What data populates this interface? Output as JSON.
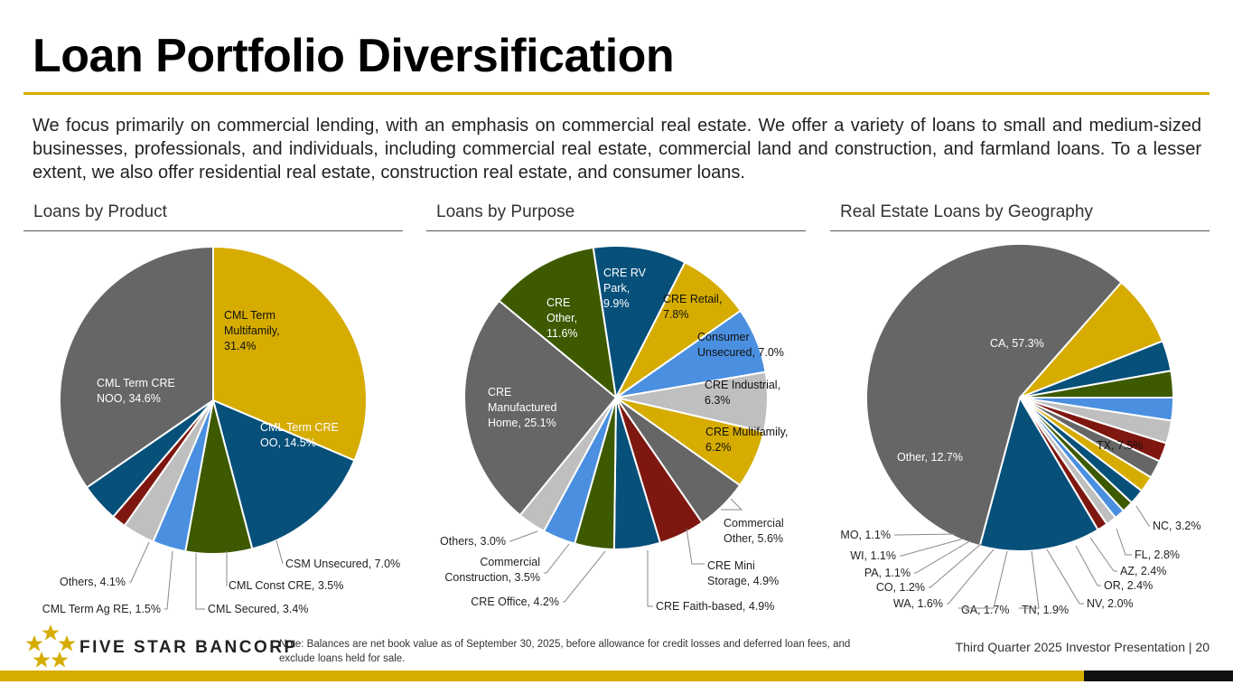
{
  "title": "Loan Portfolio Diversification",
  "intro": "We focus primarily on commercial lending, with an emphasis on commercial real estate. We offer a variety of loans to small and medium-sized businesses, professionals, and individuals, including commercial real estate, commercial land and construction, and farmland loans. To a lesser extent, we also offer residential real estate, construction real estate, and consumer loans.",
  "colors": {
    "gold": "#d6ac00",
    "navy": "#06507a",
    "gray": "#666666",
    "green": "#3d5a00",
    "lightgray": "#bfbfbf",
    "blue": "#4a8fe0",
    "maroon": "#7e1710"
  },
  "chart_data": [
    {
      "type": "pie",
      "title": "Loans by Product",
      "start_angle": 0,
      "slices": [
        {
          "label": "CML Term Multifamily, 31.4%",
          "name": "CML Term Multifamily",
          "value": 31.4,
          "color": "#d6ac00"
        },
        {
          "label": "CML Term CRE OO, 14.5%",
          "name": "CML Term CRE OO",
          "value": 14.5,
          "color": "#06507a"
        },
        {
          "label": "CSM Unsecured, 7.0%",
          "name": "CSM Unsecured",
          "value": 7.0,
          "color": "#3d5a00"
        },
        {
          "label": "CML Const CRE, 3.5%",
          "name": "CML Const CRE",
          "value": 3.5,
          "color": "#4a8fe0"
        },
        {
          "label": "CML Secured, 3.4%",
          "name": "CML Secured",
          "value": 3.4,
          "color": "#bfbfbf"
        },
        {
          "label": "CML Term Ag RE, 1.5%",
          "name": "CML Term Ag RE",
          "value": 1.5,
          "color": "#7e1710"
        },
        {
          "label": "Others, 4.1%",
          "name": "Others",
          "value": 4.1,
          "color": "#06507a"
        },
        {
          "label": "CML Term CRE NOO, 34.6%",
          "name": "CML Term CRE NOO",
          "value": 34.6,
          "color": "#666666"
        }
      ]
    },
    {
      "type": "pie",
      "title": "Loans by Purpose",
      "start_angle": 0,
      "slices": [
        {
          "label": "CRE Retail, 7.8%",
          "name": "CRE Retail",
          "value": 7.8,
          "color": "#d6ac00"
        },
        {
          "label": "Consumer Unsecured, 7.0%",
          "name": "Consumer Unsecured",
          "value": 7.0,
          "color": "#4a8fe0"
        },
        {
          "label": "CRE Industrial, 6.3%",
          "name": "CRE Industrial",
          "value": 6.3,
          "color": "#bfbfbf"
        },
        {
          "label": "CRE Multifamily, 6.2%",
          "name": "CRE Multifamily",
          "value": 6.2,
          "color": "#d6ac00"
        },
        {
          "label": "Commercial Other, 5.6%",
          "name": "Commercial Other",
          "value": 5.6,
          "color": "#666666"
        },
        {
          "label": "CRE Mini Storage, 4.9%",
          "name": "CRE Mini Storage",
          "value": 4.9,
          "color": "#7e1710"
        },
        {
          "label": "CRE Faith-based, 4.9%",
          "name": "CRE Faith-based",
          "value": 4.9,
          "color": "#06507a"
        },
        {
          "label": "CRE Office, 4.2%",
          "name": "CRE Office",
          "value": 4.2,
          "color": "#3d5a00"
        },
        {
          "label": "Commercial Construction, 3.5%",
          "name": "Commercial Construction",
          "value": 3.5,
          "color": "#4a8fe0"
        },
        {
          "label": "Others, 3.0%",
          "name": "Others",
          "value": 3.0,
          "color": "#bfbfbf"
        },
        {
          "label": "CRE Manufactured Home, 25.1%",
          "name": "CRE Manufactured Home",
          "value": 25.1,
          "color": "#666666"
        },
        {
          "label": "CRE Other, 11.6%",
          "name": "CRE Other",
          "value": 11.6,
          "color": "#3d5a00"
        },
        {
          "label": "CRE RV Park, 9.9%",
          "name": "CRE RV Park",
          "value": 9.9,
          "color": "#06507a"
        }
      ]
    },
    {
      "type": "pie",
      "title": "Real Estate Loans by Geography",
      "start_angle": 0,
      "slices": [
        {
          "label": "TX, 7.5%",
          "name": "TX",
          "value": 7.5,
          "color": "#d6ac00"
        },
        {
          "label": "NC, 3.2%",
          "name": "NC",
          "value": 3.2,
          "color": "#06507a"
        },
        {
          "label": "FL, 2.8%",
          "name": "FL",
          "value": 2.8,
          "color": "#3d5a00"
        },
        {
          "label": "AZ, 2.4%",
          "name": "AZ",
          "value": 2.4,
          "color": "#4a8fe0"
        },
        {
          "label": "OR, 2.4%",
          "name": "OR",
          "value": 2.4,
          "color": "#bfbfbf"
        },
        {
          "label": "NV, 2.0%",
          "name": "NV",
          "value": 2.0,
          "color": "#7e1710"
        },
        {
          "label": "TN, 1.9%",
          "name": "TN",
          "value": 1.9,
          "color": "#666666"
        },
        {
          "label": "GA, 1.7%",
          "name": "GA",
          "value": 1.7,
          "color": "#d6ac00"
        },
        {
          "label": "WA, 1.6%",
          "name": "WA",
          "value": 1.6,
          "color": "#06507a"
        },
        {
          "label": "CO, 1.2%",
          "name": "CO",
          "value": 1.2,
          "color": "#3d5a00"
        },
        {
          "label": "PA, 1.1%",
          "name": "PA",
          "value": 1.1,
          "color": "#4a8fe0"
        },
        {
          "label": "WI, 1.1%",
          "name": "WI",
          "value": 1.1,
          "color": "#bfbfbf"
        },
        {
          "label": "MO, 1.1%",
          "name": "MO",
          "value": 1.1,
          "color": "#7e1710"
        },
        {
          "label": "Other, 12.7%",
          "name": "Other",
          "value": 12.7,
          "color": "#06507a"
        },
        {
          "label": "CA, 57.3%",
          "name": "CA",
          "value": 57.3,
          "color": "#666666"
        }
      ]
    }
  ],
  "footer": {
    "brand": "FIVE STAR BANCORP",
    "note": "Note: Balances are net book value as of September 30, 2025, before allowance for credit losses and deferred loan fees, and exclude loans held for sale.",
    "right": "Third Quarter 2025 Investor Presentation |  20"
  }
}
